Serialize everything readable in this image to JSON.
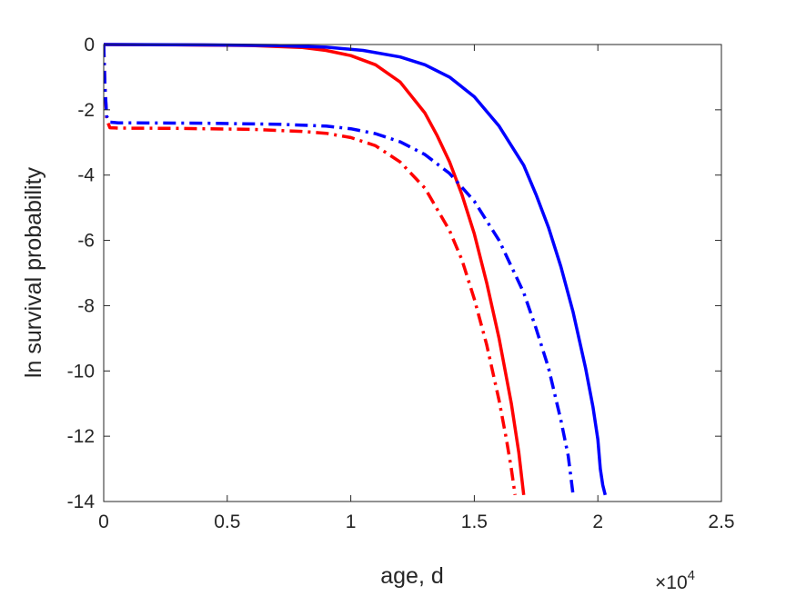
{
  "chart_data": {
    "type": "line",
    "title": "",
    "xlabel": "age, d",
    "ylabel": "ln survival probability",
    "x_multiplier_base": "×10",
    "x_multiplier_exp": "4",
    "xlim": [
      0,
      25000
    ],
    "ylim": [
      -14,
      0
    ],
    "grid": false,
    "legend": "none",
    "x_ticks": [
      {
        "value": 0,
        "label": "0"
      },
      {
        "value": 5000,
        "label": "0.5"
      },
      {
        "value": 10000,
        "label": "1"
      },
      {
        "value": 15000,
        "label": "1.5"
      },
      {
        "value": 20000,
        "label": "2"
      },
      {
        "value": 25000,
        "label": "2.5"
      }
    ],
    "y_ticks": [
      {
        "value": 0,
        "label": "0"
      },
      {
        "value": -2,
        "label": "-2"
      },
      {
        "value": -4,
        "label": "-4"
      },
      {
        "value": -6,
        "label": "-6"
      },
      {
        "value": -8,
        "label": "-8"
      },
      {
        "value": -10,
        "label": "-10"
      },
      {
        "value": -12,
        "label": "-12"
      },
      {
        "value": -14,
        "label": "-14"
      }
    ],
    "series": [
      {
        "color": "#ff0000",
        "dash": "solid",
        "points": [
          [
            0,
            0
          ],
          [
            3000,
            -0.01
          ],
          [
            6000,
            -0.03
          ],
          [
            8000,
            -0.09
          ],
          [
            9000,
            -0.18
          ],
          [
            10000,
            -0.34
          ],
          [
            11000,
            -0.62
          ],
          [
            12000,
            -1.15
          ],
          [
            13000,
            -2.1
          ],
          [
            13500,
            -2.8
          ],
          [
            14000,
            -3.6
          ],
          [
            14500,
            -4.6
          ],
          [
            15000,
            -5.8
          ],
          [
            15500,
            -7.3
          ],
          [
            16000,
            -9.0
          ],
          [
            16500,
            -11.0
          ],
          [
            16800,
            -12.5
          ],
          [
            17000,
            -13.8
          ]
        ]
      },
      {
        "color": "#0000ff",
        "dash": "solid",
        "points": [
          [
            0,
            0
          ],
          [
            4000,
            -0.01
          ],
          [
            7000,
            -0.03
          ],
          [
            9000,
            -0.08
          ],
          [
            10500,
            -0.18
          ],
          [
            12000,
            -0.38
          ],
          [
            13000,
            -0.62
          ],
          [
            14000,
            -1.0
          ],
          [
            15000,
            -1.6
          ],
          [
            16000,
            -2.5
          ],
          [
            17000,
            -3.7
          ],
          [
            17500,
            -4.6
          ],
          [
            18000,
            -5.6
          ],
          [
            18500,
            -6.8
          ],
          [
            19000,
            -8.2
          ],
          [
            19500,
            -9.9
          ],
          [
            19800,
            -11.1
          ],
          [
            20000,
            -12.1
          ],
          [
            20100,
            -13.0
          ],
          [
            20200,
            -13.5
          ],
          [
            20300,
            -13.8
          ]
        ]
      },
      {
        "color": "#ff0000",
        "dash": "dashdot",
        "points": [
          [
            0,
            0
          ],
          [
            50,
            -1.3
          ],
          [
            120,
            -2.3
          ],
          [
            250,
            -2.55
          ],
          [
            600,
            -2.56
          ],
          [
            3000,
            -2.57
          ],
          [
            6000,
            -2.6
          ],
          [
            8000,
            -2.66
          ],
          [
            9000,
            -2.72
          ],
          [
            10000,
            -2.85
          ],
          [
            11000,
            -3.1
          ],
          [
            12000,
            -3.6
          ],
          [
            13000,
            -4.4
          ],
          [
            14000,
            -5.7
          ],
          [
            14500,
            -6.6
          ],
          [
            15000,
            -7.8
          ],
          [
            15500,
            -9.2
          ],
          [
            16000,
            -10.9
          ],
          [
            16300,
            -12.1
          ],
          [
            16500,
            -13.0
          ],
          [
            16650,
            -13.8
          ]
        ]
      },
      {
        "color": "#0000ff",
        "dash": "dashdot",
        "points": [
          [
            0,
            0
          ],
          [
            50,
            -1.3
          ],
          [
            120,
            -2.2
          ],
          [
            250,
            -2.38
          ],
          [
            600,
            -2.4
          ],
          [
            4000,
            -2.41
          ],
          [
            7000,
            -2.44
          ],
          [
            9000,
            -2.5
          ],
          [
            10000,
            -2.58
          ],
          [
            11000,
            -2.73
          ],
          [
            12000,
            -2.98
          ],
          [
            13000,
            -3.37
          ],
          [
            14000,
            -3.95
          ],
          [
            15000,
            -4.8
          ],
          [
            16000,
            -6.0
          ],
          [
            17000,
            -7.6
          ],
          [
            17500,
            -8.7
          ],
          [
            18000,
            -9.9
          ],
          [
            18500,
            -11.5
          ],
          [
            18800,
            -12.6
          ],
          [
            19000,
            -13.8
          ]
        ]
      }
    ]
  }
}
